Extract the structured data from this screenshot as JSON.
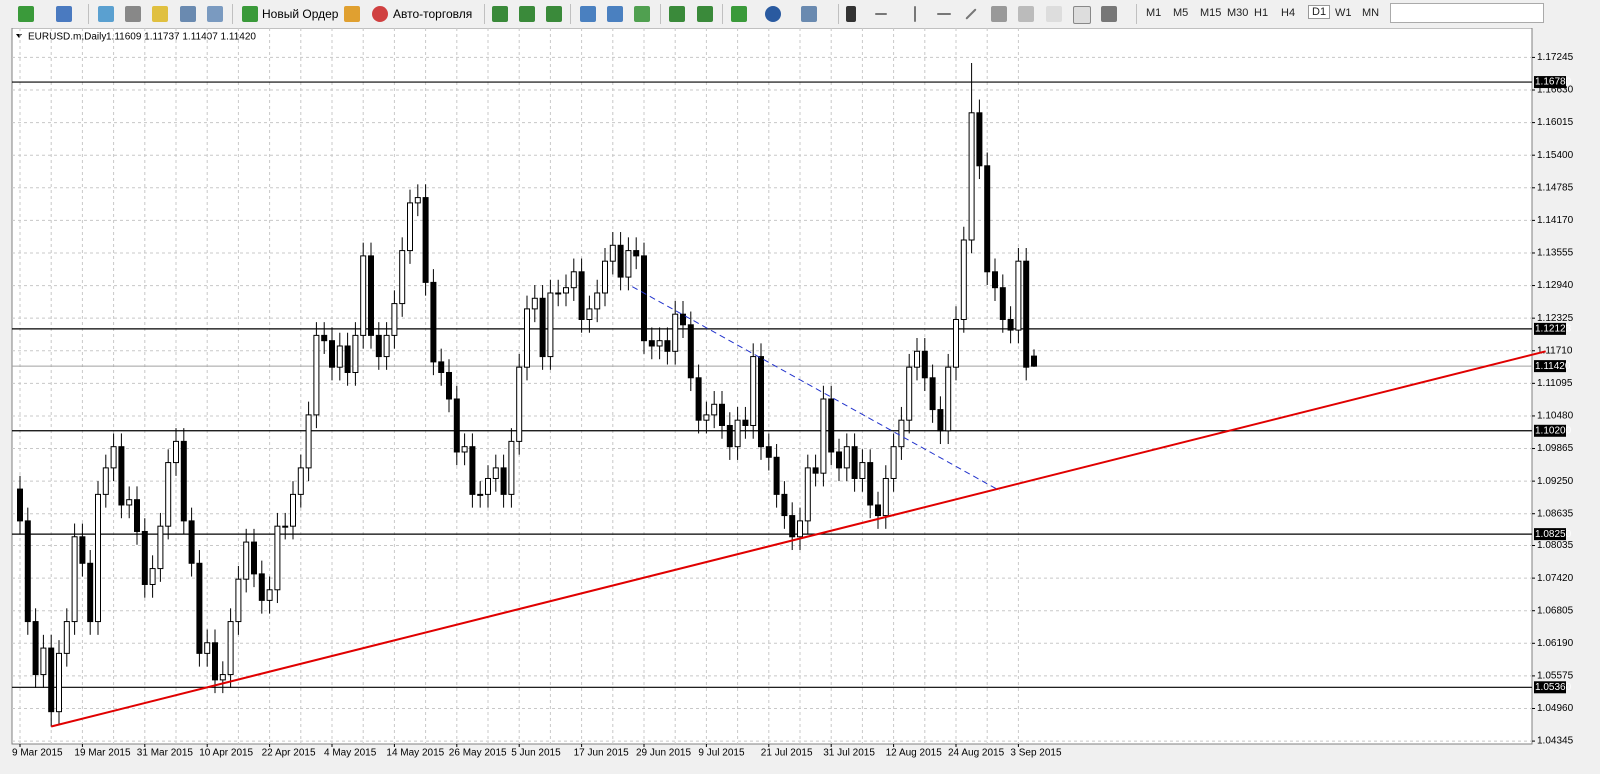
{
  "toolbar": {
    "new_order": "Новый Ордер",
    "auto_trading": "Авто-торговля",
    "timeframes": [
      "M1",
      "M5",
      "M15",
      "M30",
      "H1",
      "H4",
      "D1",
      "W1",
      "MN"
    ],
    "active_timeframe": "D1"
  },
  "chart_data": {
    "type": "candlestick",
    "title": "EURUSD.m,Daily",
    "subtitle": "1.11609 1.11737 1.11407 1.11420",
    "categories": [
      "9 Mar 2015",
      null,
      null,
      null,
      null,
      null,
      null,
      null,
      "19 Mar 2015",
      null,
      null,
      null,
      null,
      null,
      null,
      null,
      "31 Mar 2015",
      null,
      null,
      null,
      null,
      null,
      null,
      null,
      "10 Apr 2015",
      null,
      null,
      null,
      null,
      null,
      null,
      null,
      "22 Apr 2015",
      null,
      null,
      null,
      null,
      null,
      null,
      null,
      "4 May 2015",
      null,
      null,
      null,
      null,
      null,
      null,
      null,
      "14 May 2015",
      null,
      null,
      null,
      null,
      null,
      null,
      null,
      "26 May 2015",
      null,
      null,
      null,
      null,
      null,
      null,
      null,
      "5 Jun 2015",
      null,
      null,
      null,
      null,
      null,
      null,
      null,
      "17 Jun 2015",
      null,
      null,
      null,
      null,
      null,
      null,
      null,
      "29 Jun 2015",
      null,
      null,
      null,
      null,
      null,
      null,
      null,
      "9 Jul 2015",
      null,
      null,
      null,
      null,
      null,
      null,
      null,
      "21 Jul 2015",
      null,
      null,
      null,
      null,
      null,
      null,
      null,
      "31 Jul 2015",
      null,
      null,
      null,
      null,
      null,
      null,
      null,
      "12 Aug 2015",
      null,
      null,
      null,
      null,
      null,
      null,
      null,
      "24 Aug 2015",
      null,
      null,
      null,
      null,
      null,
      null,
      null,
      "3 Sep 2015",
      null,
      null
    ],
    "open": [
      1.091,
      1.085,
      1.066,
      1.056,
      1.061,
      1.049,
      1.06,
      1.066,
      1.082,
      1.077,
      1.066,
      1.09,
      1.095,
      1.099,
      1.088,
      1.089,
      1.083,
      1.073,
      1.076,
      1.084,
      1.096,
      1.1,
      1.085,
      1.077,
      1.06,
      1.062,
      1.055,
      1.056,
      1.066,
      1.074,
      1.081,
      1.075,
      1.07,
      1.072,
      1.084,
      1.084,
      1.09,
      1.095,
      1.105,
      1.12,
      1.119,
      1.114,
      1.118,
      1.113,
      1.12,
      1.135,
      1.12,
      1.116,
      1.12,
      1.126,
      1.136,
      1.145,
      1.146,
      1.13,
      1.115,
      1.113,
      1.108,
      1.098,
      1.099,
      1.09,
      1.09,
      1.093,
      1.095,
      1.09,
      1.1,
      1.114,
      1.125,
      1.127,
      1.116,
      1.128,
      1.128,
      1.129,
      1.132,
      1.123,
      1.125,
      1.128,
      1.134,
      1.137,
      1.131,
      1.136,
      1.135,
      1.119,
      1.118,
      1.119,
      1.117,
      1.124,
      1.122,
      1.112,
      1.104,
      1.105,
      1.107,
      1.103,
      1.099,
      1.104,
      1.103,
      1.116,
      1.099,
      1.097,
      1.09,
      1.086,
      1.082,
      1.085,
      1.095,
      1.094,
      1.108,
      1.098,
      1.095,
      1.099,
      1.093,
      1.096,
      1.088,
      1.086,
      1.093,
      1.099,
      1.104,
      1.114,
      1.117,
      1.112,
      1.106,
      1.102,
      1.114,
      1.123,
      1.138,
      1.162,
      1.152,
      1.132,
      1.129,
      1.123,
      1.121,
      1.134,
      1.11609
    ],
    "high": [
      1.0935,
      1.0875,
      1.0685,
      1.0635,
      1.0635,
      1.0625,
      1.0685,
      1.0845,
      1.0845,
      1.0795,
      1.0925,
      1.0975,
      1.1015,
      1.1015,
      1.0915,
      1.0915,
      1.0855,
      1.0785,
      1.0865,
      1.0985,
      1.1025,
      1.1025,
      1.0875,
      1.0795,
      1.0645,
      1.0645,
      1.0585,
      1.0685,
      1.0765,
      1.0835,
      1.0835,
      1.0775,
      1.0745,
      1.0865,
      1.0865,
      1.0925,
      1.0975,
      1.1075,
      1.1225,
      1.1225,
      1.1215,
      1.1205,
      1.1205,
      1.1225,
      1.1375,
      1.1375,
      1.1225,
      1.1225,
      1.1285,
      1.1385,
      1.1475,
      1.1485,
      1.1485,
      1.1325,
      1.1175,
      1.1155,
      1.1105,
      1.1015,
      1.1015,
      1.0925,
      1.0955,
      1.0975,
      1.0975,
      1.1025,
      1.1165,
      1.1275,
      1.1295,
      1.1295,
      1.1305,
      1.1305,
      1.1315,
      1.1345,
      1.1345,
      1.1275,
      1.1305,
      1.1365,
      1.1395,
      1.1395,
      1.1385,
      1.1385,
      1.1375,
      1.1215,
      1.1215,
      1.1215,
      1.1265,
      1.1265,
      1.1245,
      1.1145,
      1.1075,
      1.1095,
      1.1095,
      1.1055,
      1.1065,
      1.1065,
      1.1185,
      1.1185,
      1.1015,
      1.0995,
      1.0925,
      1.0885,
      1.0875,
      1.0975,
      1.0975,
      1.1105,
      1.1105,
      1.1005,
      1.1015,
      1.1015,
      1.0985,
      1.0985,
      1.0905,
      1.0955,
      1.1015,
      1.1065,
      1.1165,
      1.1195,
      1.1195,
      1.1145,
      1.1085,
      1.1165,
      1.1255,
      1.1405,
      1.1714,
      1.1645,
      1.1545,
      1.1345,
      1.1315,
      1.1255,
      1.1365,
      1.1365,
      1.11737
    ],
    "low": [
      1.0825,
      1.0635,
      1.0535,
      1.0535,
      1.0462,
      1.0465,
      1.0575,
      1.0635,
      1.0745,
      1.0635,
      1.0635,
      1.0875,
      1.0925,
      1.0855,
      1.0855,
      1.0805,
      1.0705,
      1.0705,
      1.0735,
      1.0815,
      1.0935,
      1.0825,
      1.0745,
      1.0575,
      1.0575,
      1.0525,
      1.0525,
      1.0535,
      1.0635,
      1.0715,
      1.0725,
      1.0675,
      1.0675,
      1.0695,
      1.0815,
      1.0815,
      1.0875,
      1.0925,
      1.1025,
      1.1165,
      1.1115,
      1.1115,
      1.1105,
      1.1105,
      1.1175,
      1.1175,
      1.1135,
      1.1135,
      1.1175,
      1.1235,
      1.1335,
      1.1425,
      1.1275,
      1.1125,
      1.1105,
      1.1055,
      1.0955,
      1.0955,
      1.0875,
      1.0875,
      1.0875,
      1.0905,
      1.0875,
      1.0875,
      1.0975,
      1.1115,
      1.1225,
      1.1135,
      1.1135,
      1.1255,
      1.1255,
      1.1265,
      1.1205,
      1.1205,
      1.1225,
      1.1255,
      1.1315,
      1.1285,
      1.1285,
      1.1325,
      1.1165,
      1.1155,
      1.1155,
      1.1145,
      1.1145,
      1.1195,
      1.1095,
      1.1015,
      1.1015,
      1.1025,
      1.1005,
      1.0965,
      1.0965,
      1.1005,
      1.1005,
      1.0965,
      1.0945,
      1.0875,
      1.0835,
      1.0795,
      1.0795,
      1.0825,
      1.0915,
      1.0915,
      1.0955,
      1.0925,
      1.0925,
      1.0905,
      1.0905,
      1.0855,
      1.0835,
      1.0835,
      1.0905,
      1.0965,
      1.1015,
      1.1115,
      1.1095,
      1.1035,
      1.0995,
      1.0995,
      1.1115,
      1.1205,
      1.1355,
      1.1495,
      1.1295,
      1.1265,
      1.1205,
      1.1185,
      1.1185,
      1.1115,
      1.11407
    ],
    "close": [
      1.085,
      1.066,
      1.056,
      1.061,
      1.049,
      1.06,
      1.066,
      1.082,
      1.077,
      1.066,
      1.09,
      1.095,
      1.099,
      1.088,
      1.089,
      1.083,
      1.073,
      1.076,
      1.084,
      1.096,
      1.1,
      1.085,
      1.077,
      1.06,
      1.062,
      1.055,
      1.056,
      1.066,
      1.074,
      1.081,
      1.075,
      1.07,
      1.072,
      1.084,
      1.084,
      1.09,
      1.095,
      1.105,
      1.12,
      1.119,
      1.114,
      1.118,
      1.113,
      1.12,
      1.135,
      1.12,
      1.116,
      1.12,
      1.126,
      1.136,
      1.145,
      1.146,
      1.13,
      1.115,
      1.113,
      1.108,
      1.098,
      1.099,
      1.09,
      1.09,
      1.093,
      1.095,
      1.09,
      1.1,
      1.114,
      1.125,
      1.127,
      1.116,
      1.128,
      1.128,
      1.129,
      1.132,
      1.123,
      1.125,
      1.128,
      1.134,
      1.137,
      1.131,
      1.136,
      1.135,
      1.119,
      1.118,
      1.119,
      1.117,
      1.124,
      1.122,
      1.112,
      1.104,
      1.105,
      1.107,
      1.103,
      1.099,
      1.104,
      1.103,
      1.116,
      1.099,
      1.097,
      1.09,
      1.086,
      1.082,
      1.085,
      1.095,
      1.094,
      1.108,
      1.098,
      1.095,
      1.099,
      1.093,
      1.096,
      1.088,
      1.086,
      1.093,
      1.099,
      1.104,
      1.114,
      1.117,
      1.112,
      1.106,
      1.102,
      1.114,
      1.123,
      1.138,
      1.162,
      1.152,
      1.132,
      1.129,
      1.123,
      1.121,
      1.134,
      1.114,
      1.1142
    ],
    "up_color": "#ffffff",
    "down_color": "#000000",
    "outline_color": "#000000",
    "ylim": [
      1.0429,
      1.178
    ],
    "yticks": [
      1.17245,
      {
        "value": 1.1663,
        "label": "1.16630"
      },
      1.16015,
      {
        "value": 1.154,
        "label": "1.15400"
      },
      1.14785,
      {
        "value": 1.1417,
        "label": "1.14170"
      },
      1.13555,
      {
        "value": 1.1294,
        "label": "1.12940"
      },
      1.12325,
      {
        "value": 1.1171,
        "label": "1.11710"
      },
      1.11095,
      {
        "value": 1.1048,
        "label": "1.10480"
      },
      1.09865,
      {
        "value": 1.0925,
        "label": "1.09250"
      },
      1.08635,
      1.08035,
      {
        "value": 1.0742,
        "label": "1.07420"
      },
      1.06805,
      {
        "value": 1.0619,
        "label": "1.06190"
      },
      1.05575,
      {
        "value": 1.0496,
        "label": "1.04960"
      },
      1.04345
    ],
    "grid": true,
    "levels": [
      {
        "value": 1.1678,
        "label": "1.16780"
      },
      {
        "value": 1.12123,
        "label": "1.12123"
      },
      {
        "value": 1.102,
        "label": "1.10200"
      },
      {
        "value": 1.0825,
        "label": "1.08250"
      },
      {
        "value": 1.0536,
        "label": "1.05360"
      }
    ],
    "price_line": {
      "value": 1.1142,
      "label": "1.11420"
    },
    "trend_lines": [
      {
        "color": "#e00000",
        "style": "solid",
        "x": [
          4,
          195.6
        ],
        "y": [
          1.0462,
          1.117
        ]
      },
      {
        "color": "#2233cc",
        "style": "dashed",
        "x": [
          78.5,
          125.6
        ],
        "y": [
          1.1292,
          1.0907
        ]
      }
    ]
  }
}
